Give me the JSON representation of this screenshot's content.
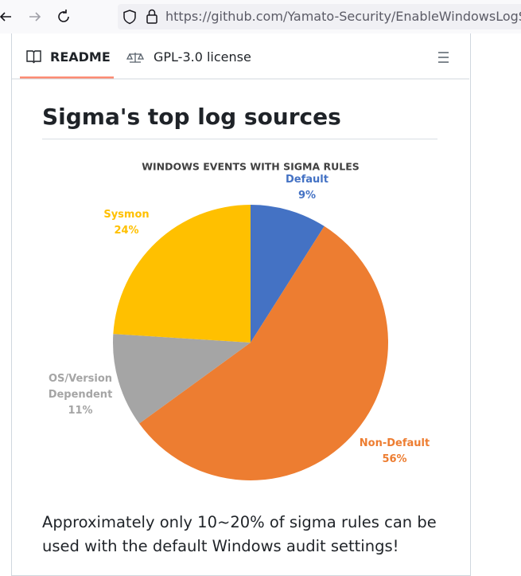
{
  "browser": {
    "url": "https://github.com/Yamato-Security/EnableWindowsLogSettings"
  },
  "tabs": [
    "README",
    "GPL-3.0 license"
  ],
  "heading": "Sigma's top log sources",
  "chart_data": {
    "type": "pie",
    "title": "WINDOWS EVENTS WITH SIGMA RULES",
    "categories": [
      "Default",
      "Non-Default",
      "OS/Version Dependent",
      "Sysmon"
    ],
    "values": [
      9,
      56,
      11,
      24
    ],
    "value_labels": [
      "9%",
      "56%",
      "11%",
      "24%"
    ],
    "colors": [
      "#4472c4",
      "#ed7d31",
      "#a5a5a5",
      "#ffc000"
    ]
  },
  "paragraph": "Approximately only 10~20% of sigma rules can be used with the default Windows audit settings!"
}
